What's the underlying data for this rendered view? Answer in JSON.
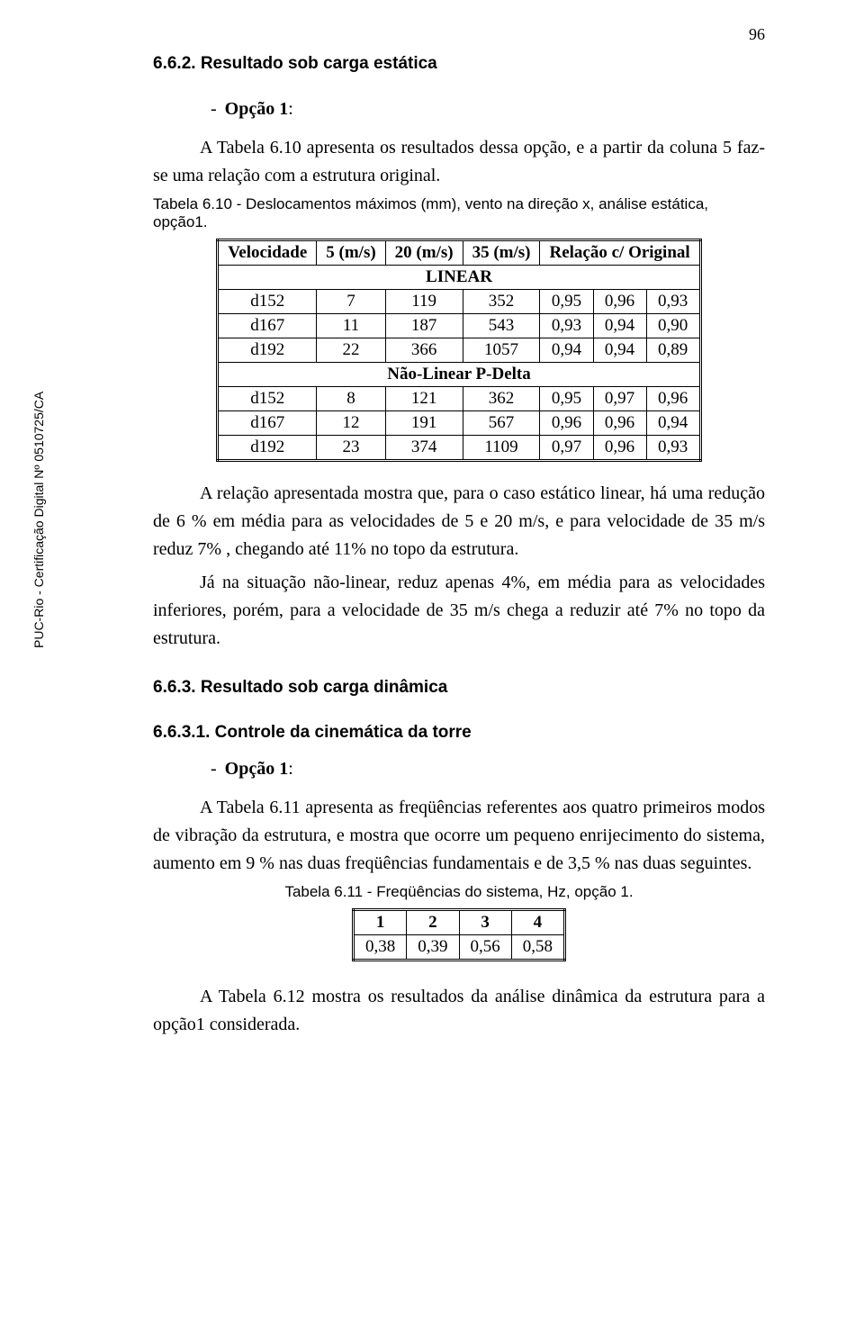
{
  "pageNumber": "96",
  "sideLabel": "PUC-Rio - Certificação Digital Nº 0510725/CA",
  "h1": "6.6.2. Resultado sob carga estática",
  "opt1_dash": "-",
  "opt1_label": "Opção 1",
  "opt1_colon": ":",
  "para1": "A Tabela 6.10 apresenta os resultados dessa opção, e a partir da coluna 5 faz-se uma relação com a estrutura original.",
  "caption1": "Tabela 6.10 - Deslocamentos máximos (mm), vento na direção x, análise estática, opção1.",
  "table1": {
    "headers": [
      "Velocidade",
      "5 (m/s)",
      "20 (m/s)",
      "35 (m/s)",
      "Relação c/ Original"
    ],
    "section1": "LINEAR",
    "rows1": [
      [
        "d152",
        "7",
        "119",
        "352",
        "0,95",
        "0,96",
        "0,93"
      ],
      [
        "d167",
        "11",
        "187",
        "543",
        "0,93",
        "0,94",
        "0,90"
      ],
      [
        "d192",
        "22",
        "366",
        "1057",
        "0,94",
        "0,94",
        "0,89"
      ]
    ],
    "section2": "Não-Linear P-Delta",
    "rows2": [
      [
        "d152",
        "8",
        "121",
        "362",
        "0,95",
        "0,97",
        "0,96"
      ],
      [
        "d167",
        "12",
        "191",
        "567",
        "0,96",
        "0,96",
        "0,94"
      ],
      [
        "d192",
        "23",
        "374",
        "1109",
        "0,97",
        "0,96",
        "0,93"
      ]
    ]
  },
  "para2": "A relação apresentada mostra que, para o caso estático linear, há uma redução de 6 % em média para as velocidades de 5 e 20 m/s, e para velocidade  de 35 m/s reduz 7% , chegando até 11% no topo da estrutura.",
  "para3": "Já na situação não-linear, reduz apenas 4%, em média para as velocidades inferiores, porém, para a velocidade de 35 m/s chega a reduzir até 7% no topo da estrutura.",
  "h2": "6.6.3. Resultado sob carga dinâmica",
  "h3": "6.6.3.1. Controle da cinemática da torre",
  "opt2_dash": "-",
  "opt2_label": "Opção 1",
  "opt2_colon": ":",
  "para4": "A Tabela 6.11 apresenta as freqüências referentes aos quatro primeiros modos de vibração da estrutura, e mostra que ocorre um pequeno enrijecimento do sistema, aumento em 9 % nas duas freqüências fundamentais e de 3,5 % nas duas seguintes.",
  "caption2": "Tabela 6.11 - Freqüências do sistema, Hz, opção 1.",
  "table2": {
    "headers": [
      "1",
      "2",
      "3",
      "4"
    ],
    "row": [
      "0,38",
      "0,39",
      "0,56",
      "0,58"
    ]
  },
  "para5": "A Tabela 6.12 mostra os resultados da análise dinâmica da estrutura para a opção1 considerada."
}
